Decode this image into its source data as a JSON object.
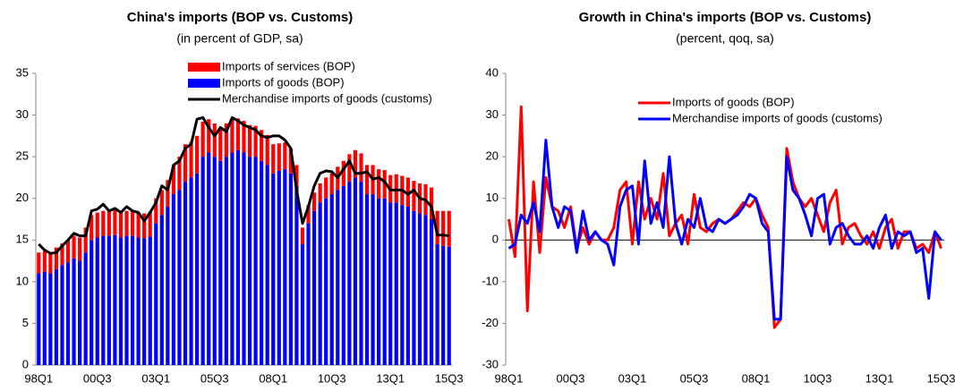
{
  "chart_data": [
    {
      "type": "stacked_bar_line",
      "title": "China's imports (BOP vs. Customs)",
      "subtitle": "(in percent of GDP, sa)",
      "categories": [
        "98Q1",
        null,
        null,
        null,
        null,
        null,
        null,
        null,
        null,
        null,
        "00Q3",
        null,
        null,
        null,
        null,
        null,
        null,
        null,
        null,
        null,
        "03Q1",
        null,
        null,
        null,
        null,
        null,
        null,
        null,
        null,
        null,
        "05Q3",
        null,
        null,
        null,
        null,
        null,
        null,
        null,
        null,
        null,
        "08Q1",
        null,
        null,
        null,
        null,
        null,
        null,
        null,
        null,
        null,
        "10Q3",
        null,
        null,
        null,
        null,
        null,
        null,
        null,
        null,
        null,
        "13Q1",
        null,
        null,
        null,
        null,
        null,
        null,
        null,
        null,
        null,
        "15Q3"
      ],
      "ylim": [
        0,
        35
      ],
      "yticks": [
        0,
        5,
        10,
        15,
        20,
        25,
        30,
        35
      ],
      "series": [
        {
          "name": "Imports of services (BOP)",
          "type": "bar",
          "color": "#ff0000",
          "values": [
            2.5,
            2.5,
            2.5,
            2.6,
            2.6,
            2.7,
            2.7,
            2.8,
            3,
            3,
            3,
            3,
            3,
            3,
            3,
            3,
            3,
            3,
            3,
            3,
            3,
            3,
            3.2,
            3.5,
            4,
            4.5,
            4.3,
            4.5,
            4.2,
            4,
            4,
            4,
            4,
            4,
            3.8,
            3.8,
            3.8,
            3.7,
            3.7,
            3.6,
            3.5,
            3.3,
            3.2,
            3,
            2.5,
            2,
            2.2,
            2.2,
            2.3,
            2.5,
            2.5,
            2.8,
            3,
            3.3,
            3.3,
            3.4,
            3.5,
            3.5,
            3.5,
            3.4,
            3.3,
            3.4,
            3.5,
            3.5,
            3.6,
            3.6,
            3.7,
            3.8,
            4,
            4.2,
            4.3
          ]
        },
        {
          "name": "Imports of goods (BOP)",
          "type": "bar",
          "color": "#0000ff",
          "values": [
            11,
            11.2,
            11,
            11.5,
            12,
            12.3,
            12.8,
            12.5,
            13.5,
            15,
            15.3,
            15.5,
            15.5,
            15.6,
            15.3,
            15.5,
            15.5,
            15.3,
            15.2,
            15.4,
            17,
            18,
            19,
            20.5,
            21,
            22,
            22.5,
            23,
            25,
            25.5,
            25,
            24.5,
            25,
            25.5,
            25.8,
            25.5,
            25,
            25,
            24.5,
            24,
            23,
            23.3,
            23.5,
            23,
            21.5,
            14.5,
            17,
            18.5,
            19.5,
            20,
            20.5,
            21,
            21.5,
            22,
            22.5,
            22,
            20.5,
            20.5,
            20,
            20,
            19.5,
            19.5,
            19.2,
            19,
            18.5,
            18.2,
            18,
            17.5,
            14.5,
            14.3,
            14.2
          ]
        },
        {
          "name": "Merchandise imports of goods (customs)",
          "type": "line",
          "color": "#000000",
          "values": [
            14.5,
            13.8,
            13.4,
            13.5,
            14.3,
            15,
            15.8,
            15.5,
            15.5,
            18.5,
            18.7,
            19.3,
            18.5,
            18.8,
            18.3,
            19,
            18.5,
            18.3,
            17.3,
            18.3,
            19.5,
            21.5,
            21,
            24,
            24.5,
            26,
            26.5,
            29.5,
            29.7,
            28.5,
            27.5,
            28.5,
            28,
            29.7,
            29.3,
            28.8,
            28.5,
            28.2,
            27.5,
            27.3,
            27.5,
            27.5,
            27,
            26,
            21,
            17,
            19,
            21.5,
            23,
            23.3,
            23.2,
            22.5,
            23.5,
            24.5,
            23,
            23,
            23.2,
            22.3,
            22.5,
            22,
            21,
            21,
            21,
            20.5,
            21,
            20,
            19.8,
            19,
            15.6,
            15.6,
            15.5
          ]
        }
      ]
    },
    {
      "type": "line",
      "title": "Growth in China's imports (BOP vs. Customs)",
      "subtitle": "(percent, qoq, sa)",
      "categories": [
        "98Q1",
        null,
        null,
        null,
        null,
        null,
        null,
        null,
        null,
        null,
        "00Q3",
        null,
        null,
        null,
        null,
        null,
        null,
        null,
        null,
        null,
        "03Q1",
        null,
        null,
        null,
        null,
        null,
        null,
        null,
        null,
        null,
        "05Q3",
        null,
        null,
        null,
        null,
        null,
        null,
        null,
        null,
        null,
        "08Q1",
        null,
        null,
        null,
        null,
        null,
        null,
        null,
        null,
        null,
        "10Q3",
        null,
        null,
        null,
        null,
        null,
        null,
        null,
        null,
        null,
        "13Q1",
        null,
        null,
        null,
        null,
        null,
        null,
        null,
        null,
        null,
        "15Q3"
      ],
      "ylim": [
        -30,
        40
      ],
      "yticks": [
        -30,
        -20,
        -10,
        0,
        10,
        20,
        30,
        40
      ],
      "series": [
        {
          "name": "Imports of goods (BOP)",
          "color": "#ff0000",
          "values": [
            5,
            -4,
            32,
            -17,
            14,
            -3,
            15,
            8,
            7,
            3,
            8,
            -2,
            3,
            -1,
            2,
            0,
            0,
            3,
            12,
            14,
            -1,
            14,
            5,
            10,
            5,
            16,
            1,
            4,
            6,
            -1,
            11,
            3,
            2,
            4,
            5,
            4,
            5,
            7,
            9,
            8,
            10,
            6,
            3,
            -21,
            -19,
            22,
            14,
            10,
            8,
            10,
            6,
            2,
            9,
            12,
            -1,
            3,
            4,
            1,
            -1,
            2,
            -2,
            3,
            5,
            -2,
            2,
            2,
            -2,
            -1,
            -3,
            2,
            -2
          ]
        },
        {
          "name": "Merchandise imports of goods (customs)",
          "color": "#0000ff",
          "values": [
            -2,
            -1,
            6,
            4,
            9,
            2,
            24,
            8,
            3,
            8,
            7,
            -3,
            7,
            0,
            2,
            0,
            -1,
            -6,
            8,
            12,
            13,
            -1,
            19,
            4,
            9,
            3,
            20,
            4,
            -1,
            5,
            3,
            10,
            3,
            2,
            5,
            4,
            5,
            6,
            8,
            11,
            10,
            4,
            2,
            -19,
            -19,
            20,
            12,
            10,
            6,
            1,
            10,
            11,
            -1,
            3,
            4,
            1,
            -1,
            -1,
            1,
            -2,
            3,
            6,
            -2,
            2,
            1,
            2,
            -3,
            -2,
            -14,
            2,
            0
          ]
        }
      ]
    }
  ]
}
